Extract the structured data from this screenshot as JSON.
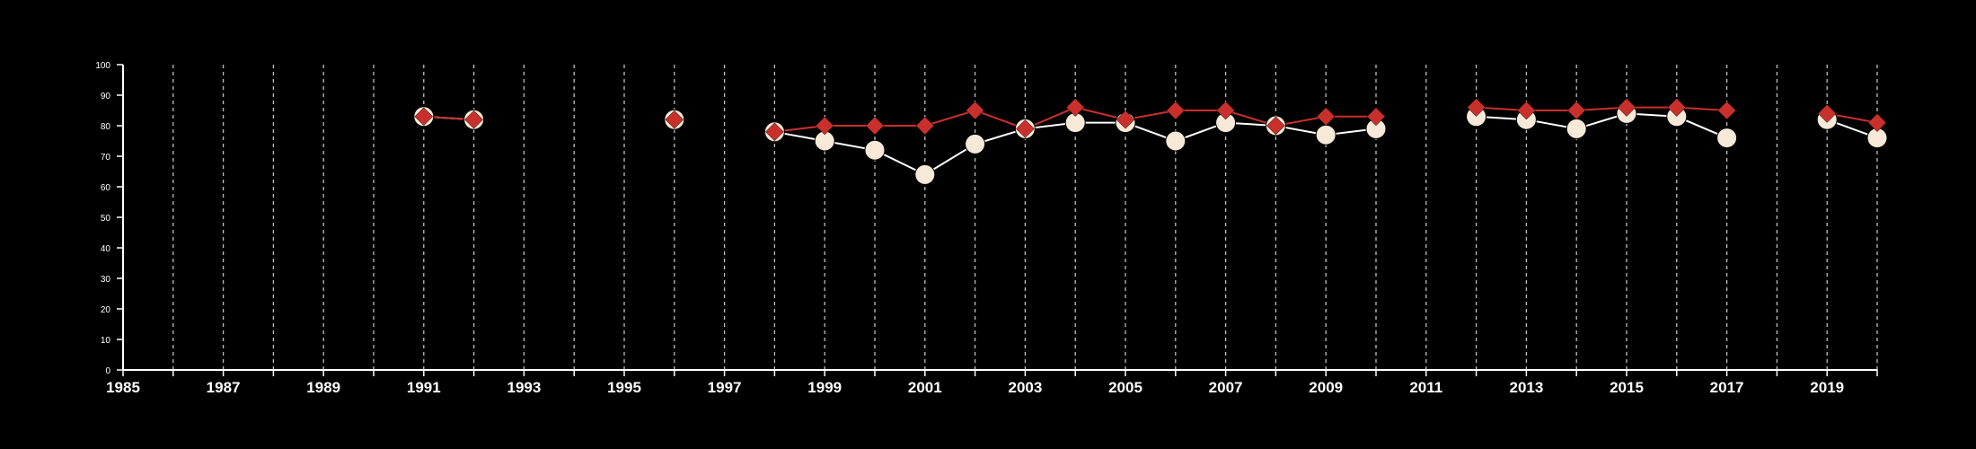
{
  "chart_data": {
    "type": "line",
    "title": "",
    "xlabel": "",
    "ylabel": "",
    "xlim": [
      1985,
      2020
    ],
    "ylim": [
      0,
      100
    ],
    "x_ticks": [
      1985,
      1987,
      1989,
      1991,
      1993,
      1995,
      1997,
      1999,
      2001,
      2003,
      2005,
      2007,
      2009,
      2011,
      2013,
      2015,
      2017,
      2019
    ],
    "y_ticks": [
      0,
      10,
      20,
      30,
      40,
      50,
      60,
      70,
      80,
      90,
      100
    ],
    "grid": {
      "vertical": true,
      "horizontal": false,
      "style": "dashed",
      "every_year": true
    },
    "legend": "none",
    "colors": {
      "background": "#000000",
      "axis": "#ffffff",
      "grid": "#bfbfbf"
    },
    "series": [
      {
        "marker": "circle",
        "color": "#ffffff",
        "marker_fill": "#f7e9d7",
        "x": [
          1991,
          1992,
          1996,
          1998,
          1999,
          2000,
          2001,
          2002,
          2003,
          2004,
          2005,
          2006,
          2007,
          2008,
          2009,
          2010,
          2012,
          2013,
          2014,
          2015,
          2016,
          2017,
          2019,
          2020
        ],
        "y": [
          83,
          82,
          82,
          78,
          75,
          72,
          64,
          74,
          79,
          81,
          81,
          75,
          81,
          80,
          77,
          79,
          83,
          82,
          79,
          84,
          83,
          76,
          82,
          76
        ]
      },
      {
        "marker": "diamond",
        "color": "#c9302c",
        "marker_fill": "#c9302c",
        "x": [
          1991,
          1992,
          1996,
          1998,
          1999,
          2000,
          2001,
          2002,
          2003,
          2004,
          2005,
          2006,
          2007,
          2008,
          2009,
          2010,
          2012,
          2013,
          2014,
          2015,
          2016,
          2017,
          2019,
          2020
        ],
        "y": [
          83,
          82,
          82,
          78,
          80,
          80,
          80,
          85,
          79,
          86,
          82,
          85,
          85,
          80,
          83,
          83,
          86,
          85,
          85,
          86,
          86,
          85,
          84,
          81
        ]
      }
    ]
  }
}
